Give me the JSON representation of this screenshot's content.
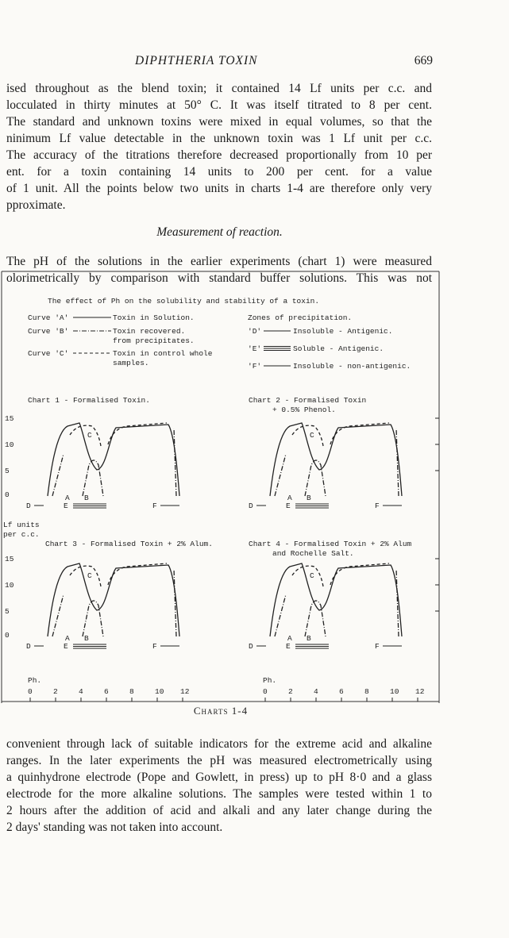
{
  "header": {
    "running_title": "DIPHTHERIA TOXIN",
    "page_number": "669"
  },
  "top_lines": [
    "ised throughout as the blend toxin; it contained 14 Lf units per c.c. and",
    "locculated in thirty minutes at 50° C. It was itself titrated to 8 per cent.",
    "The standard and unknown toxins were mixed in equal volumes, so that the",
    "ninimum Lf value detectable in the unknown toxin was 1 Lf unit per c.c.",
    "The accuracy of the titrations therefore decreased proportionally from 10 per",
    "ent. for a toxin containing 14 units to 200 per cent. for a value",
    "of 1 unit. All the points below two units in charts 1-4 are therefore only very",
    "pproximate."
  ],
  "heading": "Measurement of reaction.",
  "middle_lines": [
    "The pH of the solutions in the earlier experiments (chart 1) were measured",
    "olorimetrically by comparison with standard buffer solutions. This was not"
  ],
  "figure": {
    "title": "The effect of Ph on the solubility and stability of a toxin.",
    "curves": [
      {
        "label": "Curve 'A'",
        "text": [
          "Toxin in Solution."
        ]
      },
      {
        "label": "Curve 'B'",
        "text": [
          "Toxin recovered.",
          "from precipitates."
        ]
      },
      {
        "label": "Curve 'C'",
        "text": [
          "Toxin in control whole",
          "samples."
        ]
      }
    ],
    "zones_title": "Zones of precipitation.",
    "zones": [
      {
        "label": "'D'",
        "text": "Insoluble - Antigenic."
      },
      {
        "label": "'E'",
        "text": "Soluble - Antigenic."
      },
      {
        "label": "'F'",
        "text": "Insoluble - non-antigenic."
      }
    ],
    "charts": [
      {
        "title": [
          "Chart 1 - Formalised Toxin."
        ]
      },
      {
        "title": [
          "Chart 2 - Formalised Toxin",
          "+ 0.5% Phenol."
        ]
      },
      {
        "title": [
          "Chart 3 - Formalised Toxin + 2% Alum."
        ]
      },
      {
        "title": [
          "Chart 4 - Formalised Toxin + 2% Alum",
          "and Rochelle Salt."
        ]
      }
    ],
    "curve_letters": [
      "A",
      "B",
      "C"
    ],
    "zone_letters": [
      "D",
      "E",
      "F"
    ],
    "y_axis_label": [
      "Lf units",
      "per c.c."
    ],
    "y_ticks": [
      15,
      10,
      5,
      0
    ],
    "x_axis_label": "Ph.",
    "x_ticks": [
      0,
      2,
      4,
      6,
      8,
      10,
      12
    ],
    "caption": "Charts 1-4"
  },
  "bottom_lines": [
    "convenient through lack of suitable indicators for the extreme acid and alkaline",
    "ranges. In the later experiments the pH was measured electrometrically using",
    "a quinhydrone electrode (Pope and Gowlett, in press) up to pH 8·0 and a glass",
    "electrode for the more alkaline solutions. The samples were tested within 1 to",
    "2 hours after the addition of acid and alkali and any later change during the",
    "2 days' standing was not taken into account."
  ]
}
